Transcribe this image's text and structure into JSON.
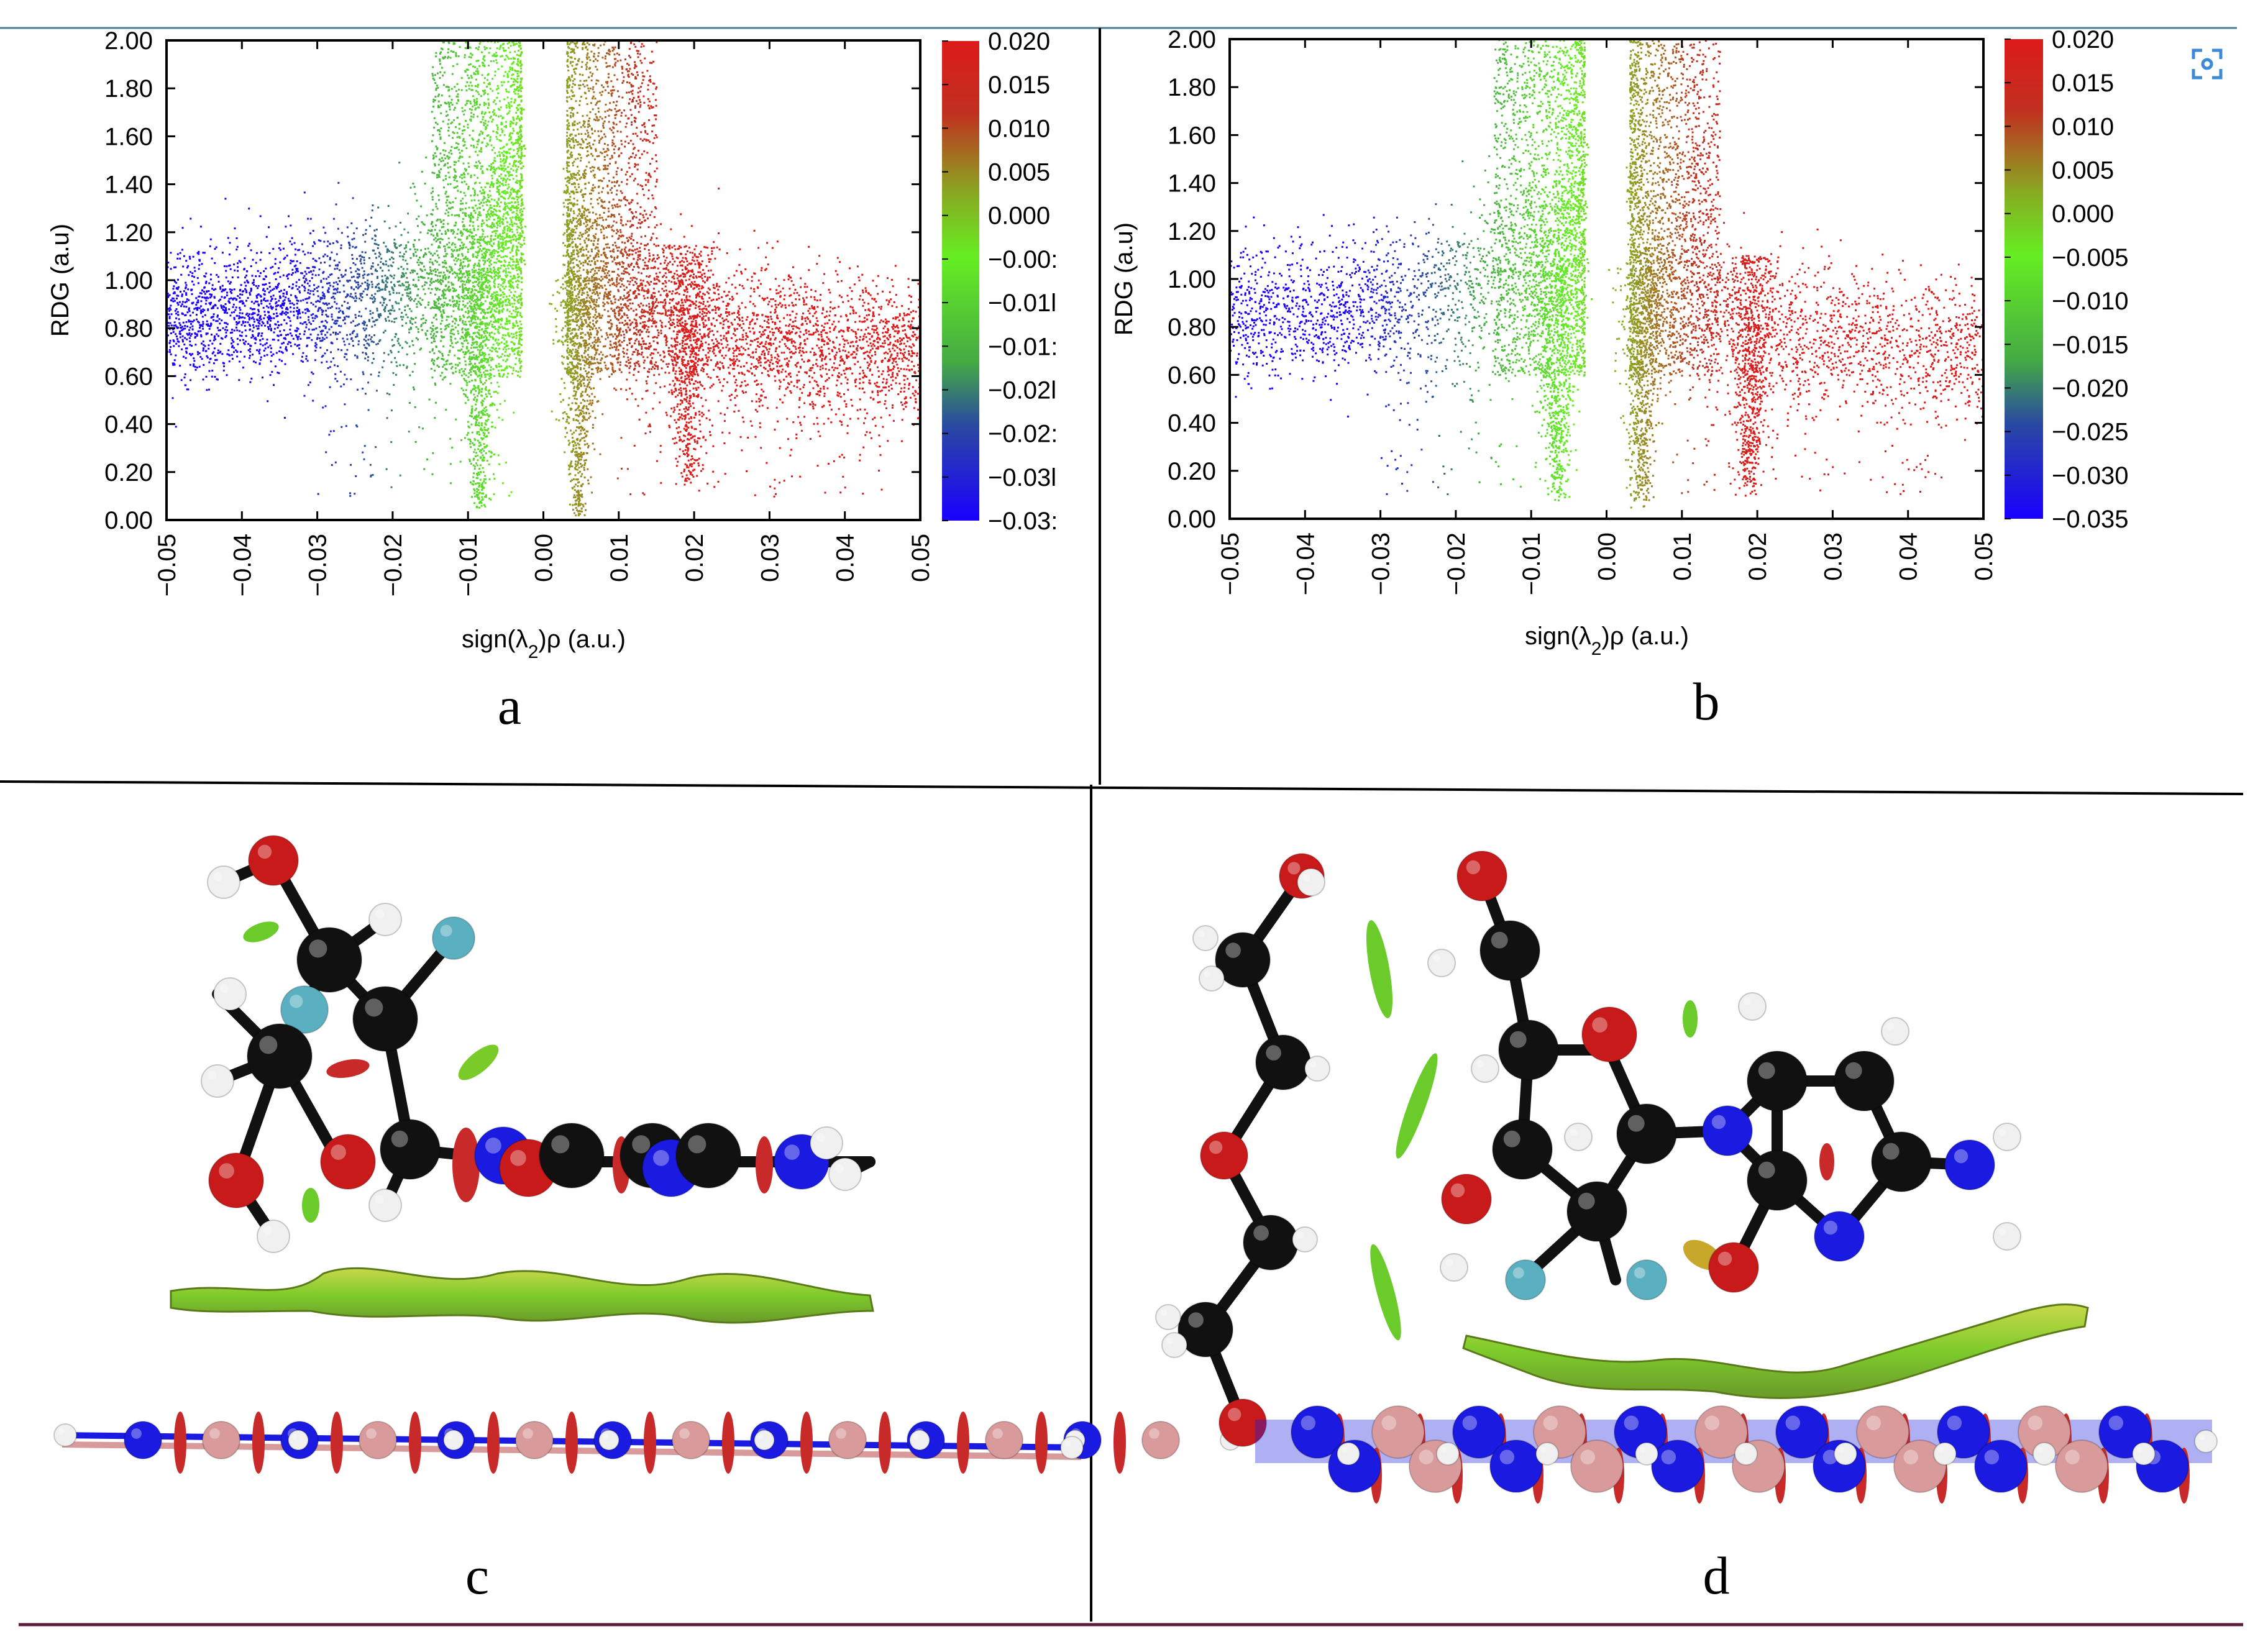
{
  "figure": {
    "panel_labels": [
      "a",
      "b",
      "c",
      "d"
    ]
  },
  "chart_data": [
    {
      "type": "scatter",
      "panel": "a",
      "xlabel": "sign(λ2)ρ (a.u.)",
      "ylabel": "RDG (a.u)",
      "xlim": [
        -0.05,
        0.05
      ],
      "ylim": [
        0.0,
        2.0
      ],
      "x_ticks": [
        "-0.05",
        "-0.04",
        "-0.03",
        "-0.02",
        "-0.01",
        "0.00",
        "0.01",
        "0.02",
        "0.03",
        "0.04",
        "0.05"
      ],
      "y_ticks": [
        "0.00",
        "0.20",
        "0.40",
        "0.60",
        "0.80",
        "1.00",
        "1.20",
        "1.40",
        "1.60",
        "1.80",
        "2.00"
      ],
      "colorbar": {
        "range": [
          -0.035,
          0.02
        ],
        "tick_labels": [
          "0.020",
          "0.015",
          "0.010",
          "0.005",
          "0.000",
          "-0.00:",
          "-0.01l",
          "-0.01:",
          "-0.02l",
          "-0.02:",
          "-0.03l",
          "-0.03:"
        ],
        "colors": [
          "#0000ff",
          "#00ff00",
          "#ff0000"
        ]
      },
      "grid": false,
      "spikes": [
        {
          "x": -0.0085,
          "rdg_min": 0.05
        },
        {
          "x": 0.0045,
          "rdg_min": 0.02
        },
        {
          "x": 0.019,
          "rdg_min": 0.15
        }
      ]
    },
    {
      "type": "scatter",
      "panel": "b",
      "xlabel": "sign(λ2)ρ (a.u.)",
      "ylabel": "RDG (a.u)",
      "xlim": [
        -0.05,
        0.05
      ],
      "ylim": [
        0.0,
        2.0
      ],
      "x_ticks": [
        "-0.05",
        "-0.04",
        "-0.03",
        "-0.02",
        "-0.01",
        "0.00",
        "0.01",
        "0.02",
        "0.03",
        "0.04",
        "0.05"
      ],
      "y_ticks": [
        "0.00",
        "0.20",
        "0.40",
        "0.60",
        "0.80",
        "1.00",
        "1.20",
        "1.40",
        "1.60",
        "1.80",
        "2.00"
      ],
      "colorbar": {
        "range": [
          -0.035,
          0.02
        ],
        "tick_labels": [
          "0.020",
          "0.015",
          "0.010",
          "0.005",
          "0.000",
          "-0.005",
          "-0.010",
          "-0.015",
          "-0.020",
          "-0.025",
          "-0.030",
          "-0.035"
        ],
        "colors": [
          "#0000ff",
          "#00ff00",
          "#ff0000"
        ]
      },
      "grid": false,
      "spikes": [
        {
          "x": -0.0065,
          "rdg_min": 0.08
        },
        {
          "x": 0.0045,
          "rdg_min": 0.05
        },
        {
          "x": 0.019,
          "rdg_min": 0.1
        }
      ]
    }
  ]
}
